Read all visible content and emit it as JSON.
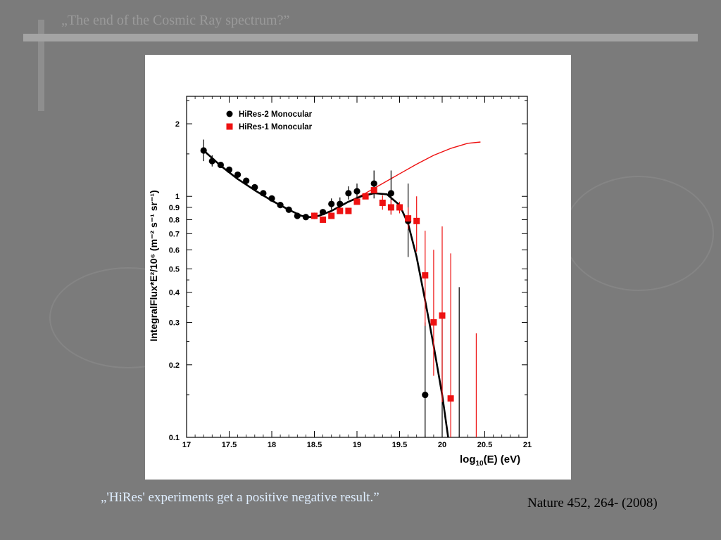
{
  "slide": {
    "title": "„The end of the Cosmic Ray spectrum?”",
    "caption": "„'HiRes' experiments get a positive negative result.”",
    "reference": "Nature 452, 264- (2008)"
  },
  "colors": {
    "background": "#7b7b7b",
    "hires2": "#000000",
    "hires1": "#ee1111",
    "caption": "#dfeeff"
  },
  "chart_data": {
    "type": "scatter",
    "x_axis": {
      "label_base": "log",
      "label_sub": "10",
      "label_rest": "(E) (eV)",
      "range": [
        17,
        21
      ],
      "ticks": [
        17,
        17.5,
        18,
        18.5,
        19,
        19.5,
        20,
        20.5,
        21
      ],
      "tick_labels": [
        "17",
        "17.5",
        "18",
        "18.5",
        "19",
        "19.5",
        "20",
        "20.5",
        "21"
      ]
    },
    "y_axis": {
      "label": "IntegralFlux*E²/10⁶ (m⁻² s⁻¹ sr⁻¹)",
      "scale": "log",
      "range": [
        0.1,
        2.6
      ],
      "ticks": [
        0.1,
        0.2,
        0.3,
        0.4,
        0.5,
        0.6,
        0.7,
        0.8,
        0.9,
        1,
        2
      ],
      "tick_labels": [
        "0.1",
        "0.2",
        "0.3",
        "0.4",
        "0.5",
        "0.6",
        "0.7",
        "0.8",
        "0.9",
        "1",
        "2"
      ]
    },
    "legend_position": "top-left",
    "series": [
      {
        "name": "HiRes-2 Monocular",
        "marker": "circle",
        "color": "#000000",
        "points": [
          {
            "x": 17.2,
            "y": 1.55,
            "lo": 1.4,
            "hi": 1.72
          },
          {
            "x": 17.3,
            "y": 1.4,
            "lo": 1.33,
            "hi": 1.48
          },
          {
            "x": 17.4,
            "y": 1.35
          },
          {
            "x": 17.5,
            "y": 1.29
          },
          {
            "x": 17.6,
            "y": 1.23
          },
          {
            "x": 17.7,
            "y": 1.16
          },
          {
            "x": 17.8,
            "y": 1.09
          },
          {
            "x": 17.9,
            "y": 1.03
          },
          {
            "x": 18.0,
            "y": 0.98
          },
          {
            "x": 18.1,
            "y": 0.92
          },
          {
            "x": 18.2,
            "y": 0.88
          },
          {
            "x": 18.3,
            "y": 0.83
          },
          {
            "x": 18.4,
            "y": 0.82
          },
          {
            "x": 18.5,
            "y": 0.83
          },
          {
            "x": 18.6,
            "y": 0.86
          },
          {
            "x": 18.7,
            "y": 0.93,
            "lo": 0.88,
            "hi": 0.98
          },
          {
            "x": 18.8,
            "y": 0.93,
            "lo": 0.88,
            "hi": 0.99
          },
          {
            "x": 18.9,
            "y": 1.03,
            "lo": 0.97,
            "hi": 1.1
          },
          {
            "x": 19.0,
            "y": 1.05,
            "lo": 0.98,
            "hi": 1.13
          },
          {
            "x": 19.2,
            "y": 1.13,
            "lo": 0.98,
            "hi": 1.28
          },
          {
            "x": 19.4,
            "y": 1.03,
            "lo": 0.84,
            "hi": 1.28
          },
          {
            "x": 19.6,
            "y": 0.79,
            "lo": 0.56,
            "hi": 1.13
          },
          {
            "x": 19.8,
            "y": 0.15,
            "lo": 0.1,
            "hi": 0.3
          },
          {
            "x": 20.0,
            "y": null,
            "lo": 0.1,
            "hi": 0.33
          },
          {
            "x": 20.2,
            "y": null,
            "lo": 0.1,
            "hi": 0.42
          }
        ]
      },
      {
        "name": "HiRes-1 Monocular",
        "marker": "square",
        "color": "#ee1111",
        "points": [
          {
            "x": 18.5,
            "y": 0.83
          },
          {
            "x": 18.6,
            "y": 0.8
          },
          {
            "x": 18.7,
            "y": 0.83
          },
          {
            "x": 18.8,
            "y": 0.87
          },
          {
            "x": 18.9,
            "y": 0.87
          },
          {
            "x": 19.0,
            "y": 0.95
          },
          {
            "x": 19.1,
            "y": 1.0
          },
          {
            "x": 19.2,
            "y": 1.06
          },
          {
            "x": 19.3,
            "y": 0.94,
            "lo": 0.88,
            "hi": 1.01
          },
          {
            "x": 19.4,
            "y": 0.9,
            "lo": 0.84,
            "hi": 0.97
          },
          {
            "x": 19.5,
            "y": 0.9,
            "lo": 0.85,
            "hi": 0.95
          },
          {
            "x": 19.6,
            "y": 0.81,
            "lo": 0.73,
            "hi": 0.9
          },
          {
            "x": 19.7,
            "y": 0.79,
            "lo": 0.59,
            "hi": 1.0
          },
          {
            "x": 19.8,
            "y": 0.47,
            "lo": 0.29,
            "hi": 0.72
          },
          {
            "x": 19.9,
            "y": 0.3,
            "lo": 0.18,
            "hi": 0.6
          },
          {
            "x": 20.0,
            "y": 0.32,
            "lo": 0.14,
            "hi": 0.75
          },
          {
            "x": 20.1,
            "y": 0.145,
            "lo": 0.1,
            "hi": 0.58
          },
          {
            "x": 20.4,
            "y": null,
            "lo": 0.1,
            "hi": 0.27
          }
        ]
      }
    ],
    "fit_curves": [
      {
        "color": "#000000",
        "points": [
          [
            17.2,
            1.55
          ],
          [
            17.4,
            1.34
          ],
          [
            17.6,
            1.18
          ],
          [
            17.8,
            1.06
          ],
          [
            18.0,
            0.96
          ],
          [
            18.2,
            0.88
          ],
          [
            18.35,
            0.83
          ],
          [
            18.45,
            0.82
          ],
          [
            18.55,
            0.83
          ],
          [
            18.7,
            0.87
          ],
          [
            18.9,
            0.95
          ],
          [
            19.05,
            1.0
          ],
          [
            19.2,
            1.03
          ],
          [
            19.35,
            1.02
          ],
          [
            19.5,
            0.92
          ],
          [
            19.6,
            0.77
          ],
          [
            19.7,
            0.56
          ],
          [
            19.8,
            0.37
          ],
          [
            19.9,
            0.24
          ],
          [
            20.0,
            0.15
          ],
          [
            20.07,
            0.1
          ]
        ]
      },
      {
        "color": "#ee1111",
        "points": [
          [
            18.9,
            0.95
          ],
          [
            19.1,
            1.03
          ],
          [
            19.3,
            1.13
          ],
          [
            19.5,
            1.24
          ],
          [
            19.7,
            1.36
          ],
          [
            19.9,
            1.48
          ],
          [
            20.1,
            1.58
          ],
          [
            20.3,
            1.66
          ],
          [
            20.45,
            1.68
          ]
        ]
      }
    ]
  }
}
